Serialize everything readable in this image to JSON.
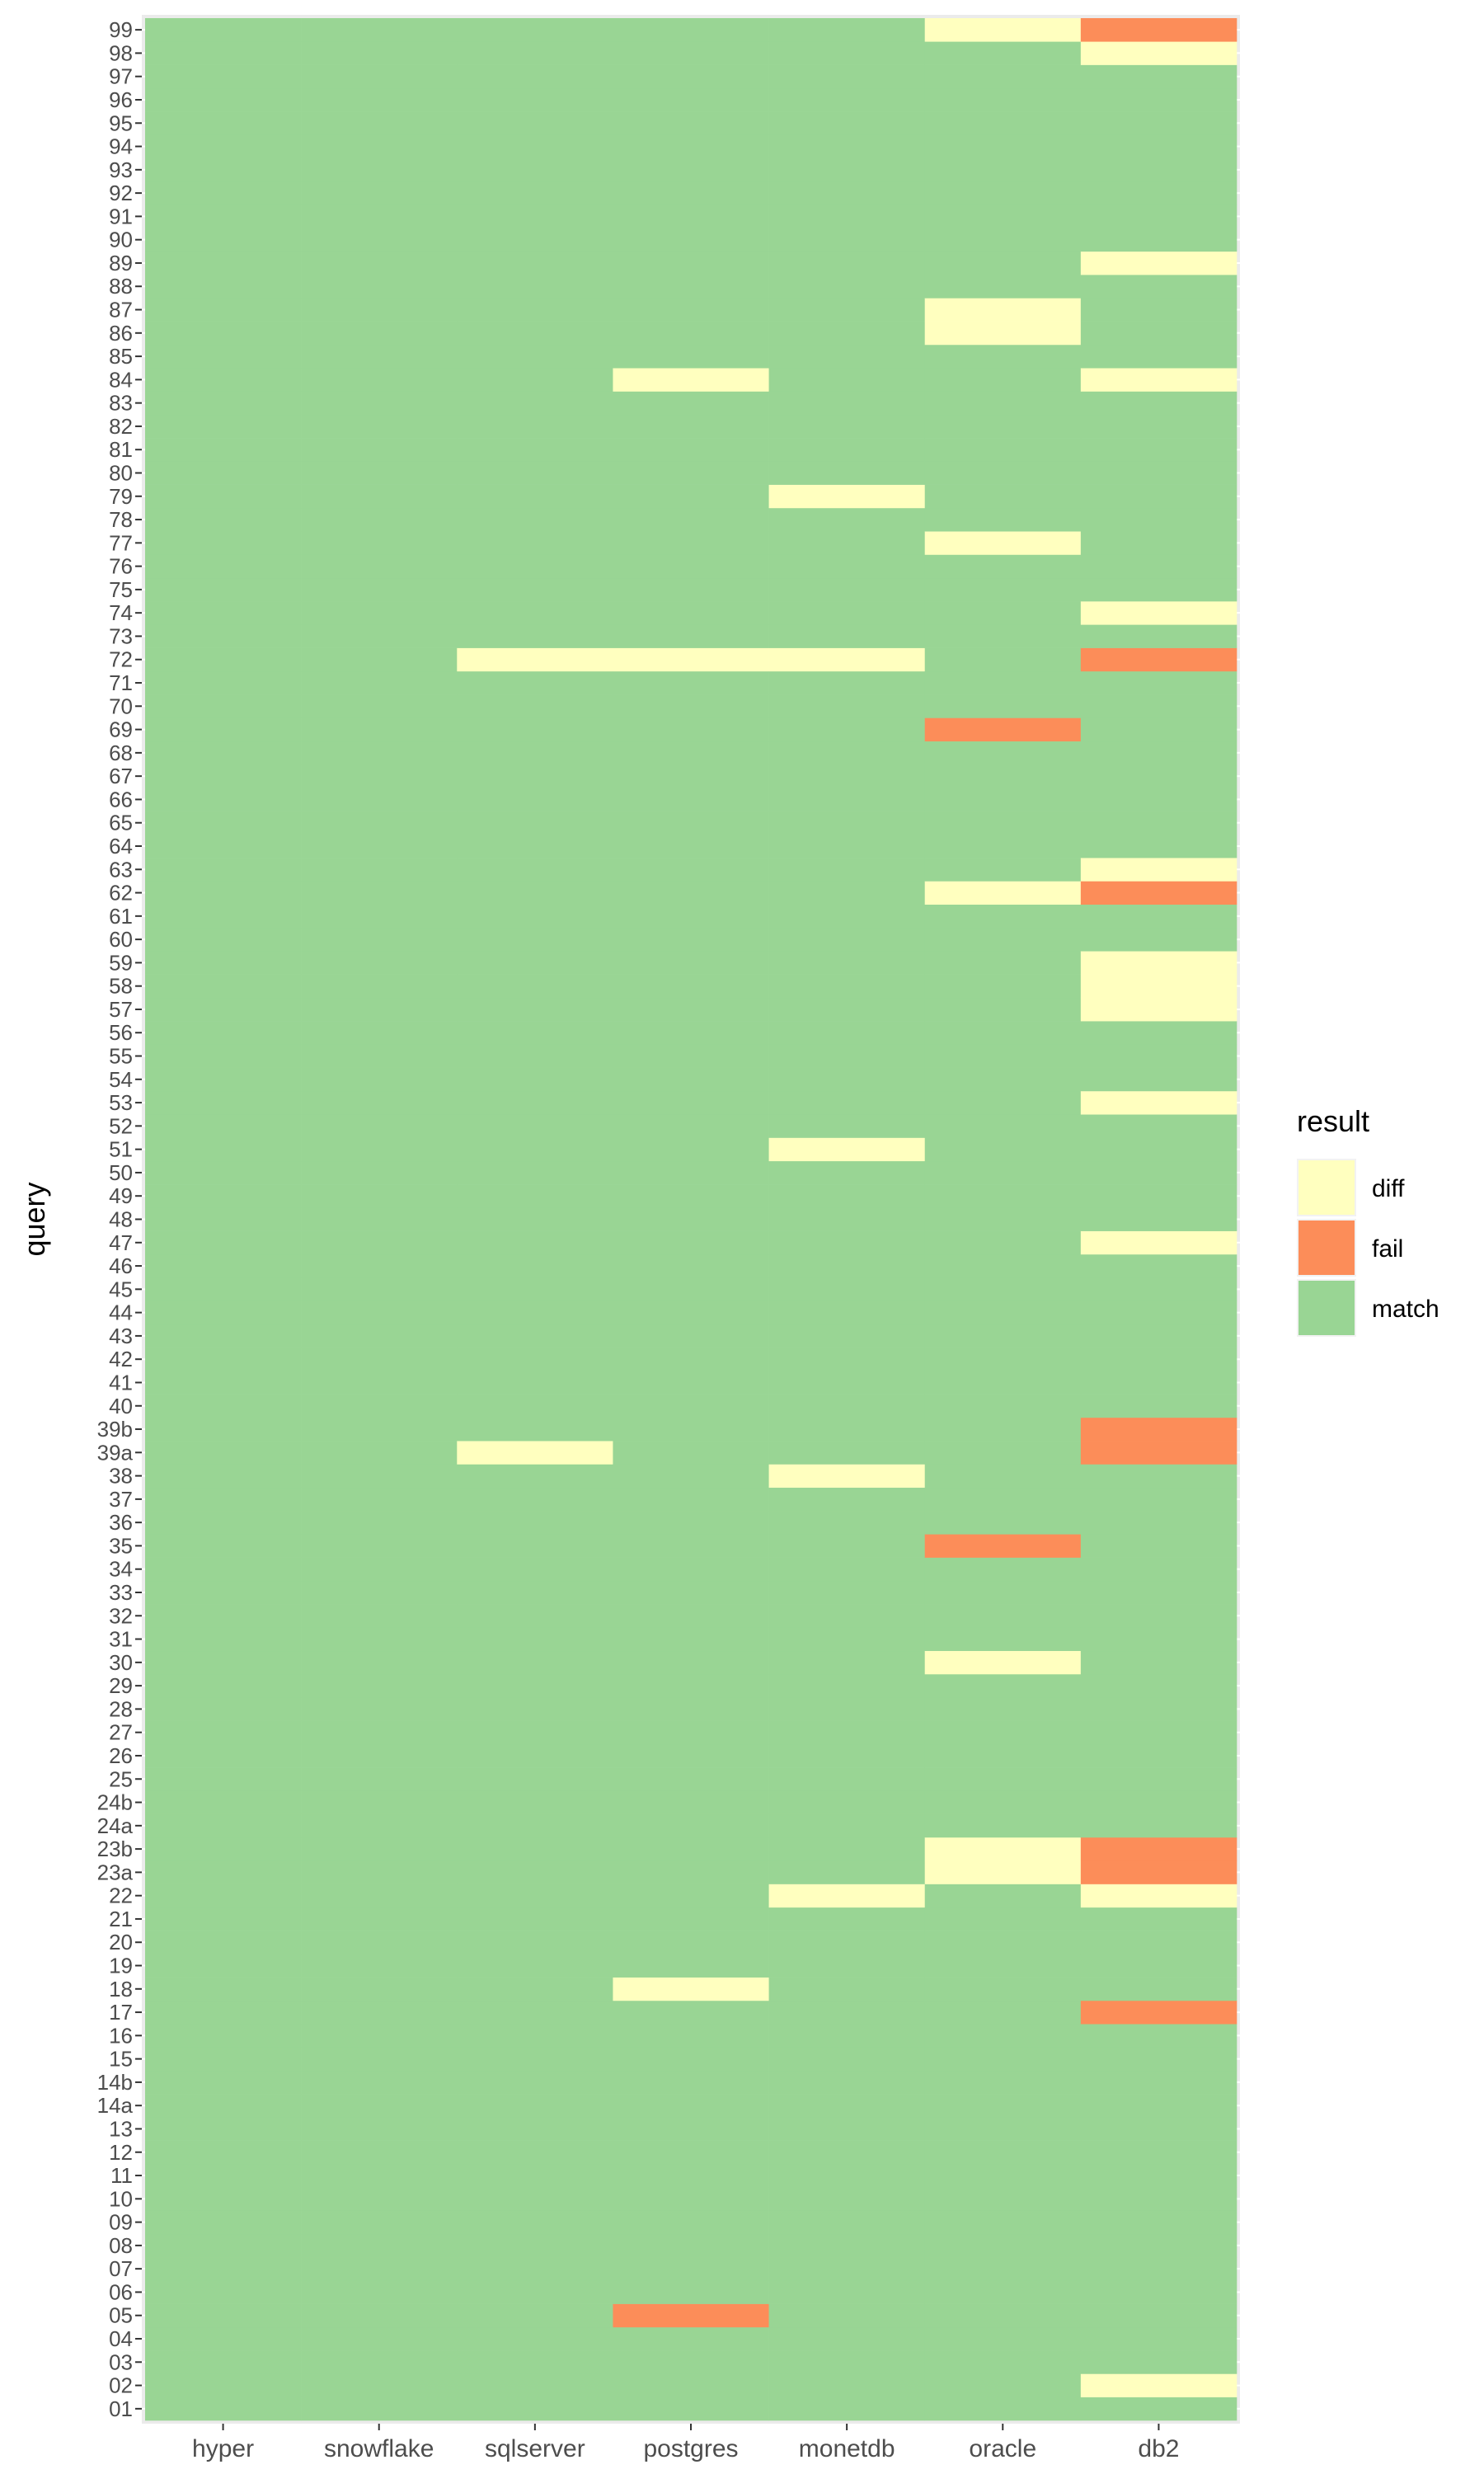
{
  "chart_data": {
    "type": "heatmap",
    "title": "",
    "xlabel": "",
    "ylabel": "query",
    "x_categories": [
      "hyper",
      "snowflake",
      "sqlserver",
      "postgres",
      "monetdb",
      "oracle",
      "db2"
    ],
    "y_categories": [
      "01",
      "02",
      "03",
      "04",
      "05",
      "06",
      "07",
      "08",
      "09",
      "10",
      "11",
      "12",
      "13",
      "14a",
      "14b",
      "15",
      "16",
      "17",
      "18",
      "19",
      "20",
      "21",
      "22",
      "23a",
      "23b",
      "24a",
      "24b",
      "25",
      "26",
      "27",
      "28",
      "29",
      "30",
      "31",
      "32",
      "33",
      "34",
      "35",
      "36",
      "37",
      "38",
      "39a",
      "39b",
      "40",
      "41",
      "42",
      "43",
      "44",
      "45",
      "46",
      "47",
      "48",
      "49",
      "50",
      "51",
      "52",
      "53",
      "54",
      "55",
      "56",
      "57",
      "58",
      "59",
      "60",
      "61",
      "62",
      "63",
      "64",
      "65",
      "66",
      "67",
      "68",
      "69",
      "70",
      "71",
      "72",
      "73",
      "74",
      "75",
      "76",
      "77",
      "78",
      "79",
      "80",
      "81",
      "82",
      "83",
      "84",
      "85",
      "86",
      "87",
      "88",
      "89",
      "90",
      "91",
      "92",
      "93",
      "94",
      "95",
      "96",
      "97",
      "98",
      "99"
    ],
    "default_value": "match",
    "cells": {
      "postgres": {
        "05": "fail",
        "18": "diff",
        "72": "diff",
        "84": "diff"
      },
      "sqlserver": {
        "39a": "diff",
        "72": "diff"
      },
      "monetdb": {
        "22": "diff",
        "38": "diff",
        "51": "diff",
        "72": "diff",
        "79": "diff"
      },
      "oracle": {
        "23a": "diff",
        "23b": "diff",
        "30": "diff",
        "35": "fail",
        "62": "diff",
        "69": "fail",
        "77": "diff",
        "86": "diff",
        "87": "diff",
        "99": "diff"
      },
      "db2": {
        "02": "diff",
        "17": "fail",
        "22": "diff",
        "23a": "fail",
        "23b": "fail",
        "39a": "fail",
        "39b": "fail",
        "47": "diff",
        "53": "diff",
        "57": "diff",
        "58": "diff",
        "59": "diff",
        "62": "fail",
        "63": "diff",
        "72": "fail",
        "74": "diff",
        "84": "diff",
        "89": "diff",
        "98": "diff",
        "99": "fail"
      }
    },
    "legend": {
      "title": "result",
      "placement": "right",
      "items": [
        {
          "label": "diff",
          "color": "#FFFFBF"
        },
        {
          "label": "fail",
          "color": "#FC8D59"
        },
        {
          "label": "match",
          "color": "#99D594"
        }
      ]
    },
    "panel_background": "#EBEBEB",
    "grid": true
  }
}
